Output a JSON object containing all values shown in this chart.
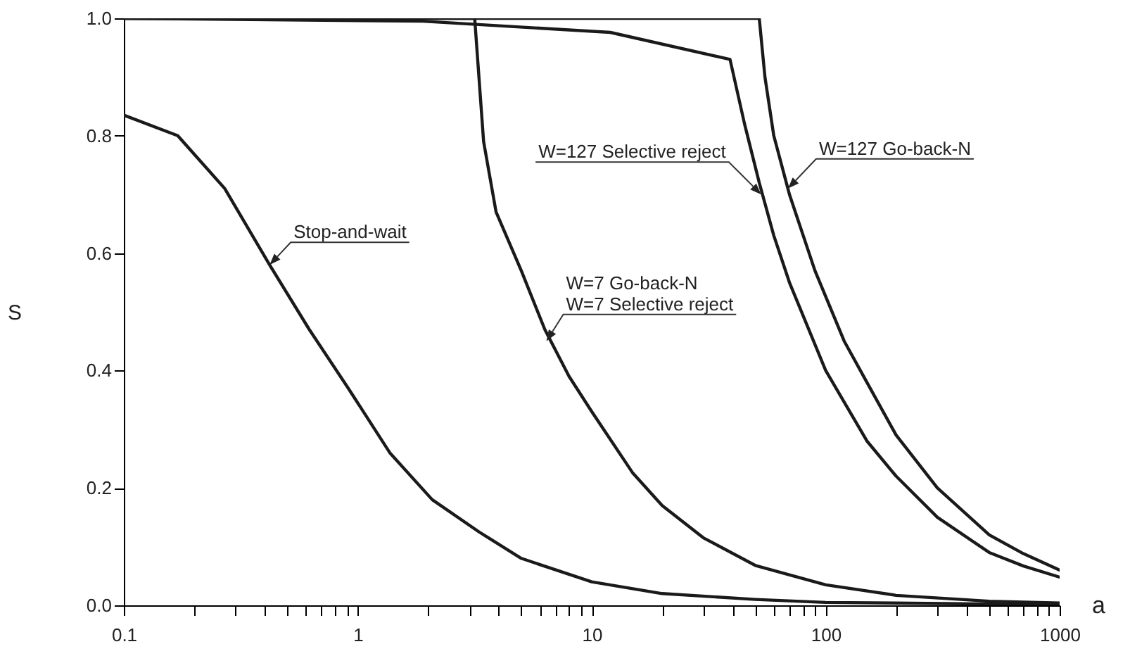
{
  "chart_data": {
    "type": "line",
    "xlabel": "a",
    "ylabel": "S",
    "log": "x",
    "grid": false,
    "marker": "none",
    "line_style": "solid",
    "xlim": [
      0.1,
      1000
    ],
    "ylim": [
      0,
      1
    ],
    "xticks": [
      0.1,
      {
        "value": 0.2,
        "label": null
      },
      {
        "value": 0.3,
        "label": null
      },
      {
        "value": 0.4,
        "label": null
      },
      {
        "value": 0.5,
        "label": null
      },
      {
        "value": 0.6,
        "label": null
      },
      {
        "value": 0.7,
        "label": null
      },
      {
        "value": 0.8,
        "label": null
      },
      {
        "value": 0.9,
        "label": null
      },
      1,
      {
        "value": 2,
        "label": null
      },
      {
        "value": 3,
        "label": null
      },
      {
        "value": 4,
        "label": null
      },
      {
        "value": 5,
        "label": null
      },
      {
        "value": 6,
        "label": null
      },
      {
        "value": 7,
        "label": null
      },
      {
        "value": 8,
        "label": null
      },
      {
        "value": 9,
        "label": null
      },
      10,
      {
        "value": 20,
        "label": null
      },
      {
        "value": 30,
        "label": null
      },
      {
        "value": 40,
        "label": null
      },
      {
        "value": 50,
        "label": null
      },
      {
        "value": 60,
        "label": null
      },
      {
        "value": 70,
        "label": null
      },
      {
        "value": 80,
        "label": null
      },
      {
        "value": 90,
        "label": null
      },
      100,
      {
        "value": 200,
        "label": null
      },
      {
        "value": 300,
        "label": null
      },
      {
        "value": 400,
        "label": null
      },
      {
        "value": 500,
        "label": null
      },
      {
        "value": 600,
        "label": null
      },
      {
        "value": 700,
        "label": null
      },
      {
        "value": 800,
        "label": null
      },
      {
        "value": 900,
        "label": null
      },
      1000
    ],
    "yticks": [
      {
        "value": 0,
        "label": "0.0"
      },
      0.2,
      0.4,
      0.6,
      0.8,
      {
        "value": 1,
        "label": "1.0"
      }
    ],
    "series": [
      {
        "color": "#1a1a1a",
        "x": [
          0.1,
          0.17,
          0.27,
          0.42,
          0.62,
          0.91,
          1.37,
          2.08,
          3.3,
          5,
          10,
          20,
          50,
          100,
          1000
        ],
        "values": [
          0.835,
          0.8,
          0.71,
          0.58,
          0.47,
          0.37,
          0.26,
          0.18,
          0.125,
          0.08,
          0.04,
          0.02,
          0.01,
          0.005,
          0.001
        ]
      },
      {
        "color": "#1a1a1a",
        "x": [
          0.1,
          1,
          3.16,
          3.45,
          3.9,
          5,
          6.3,
          8,
          10,
          15,
          20,
          30,
          50,
          100,
          200,
          500,
          1000
        ],
        "values": [
          1,
          1,
          1,
          0.79,
          0.67,
          0.57,
          0.47,
          0.39,
          0.33,
          0.225,
          0.17,
          0.115,
          0.068,
          0.035,
          0.017,
          0.007,
          0.004
        ]
      },
      {
        "color": "#1a1a1a",
        "x": [
          0.1,
          1.9,
          12,
          39,
          45,
          52,
          60,
          70,
          100,
          150,
          200,
          300,
          500,
          700,
          1000
        ],
        "values": [
          1,
          0.995,
          0.976,
          0.93,
          0.82,
          0.72,
          0.63,
          0.55,
          0.4,
          0.28,
          0.22,
          0.15,
          0.09,
          0.067,
          0.048
        ]
      },
      {
        "color": "#1a1a1a",
        "x": [
          0.1,
          52,
          55,
          60,
          70,
          90,
          120,
          150,
          200,
          300,
          500,
          700,
          1000
        ],
        "values": [
          1,
          1,
          0.9,
          0.8,
          0.7,
          0.57,
          0.45,
          0.38,
          0.29,
          0.2,
          0.12,
          0.088,
          0.06
        ]
      }
    ],
    "annotations": [
      {
        "text": "Stop-and-wait",
        "x": 0.42,
        "y": 0.58
      },
      {
        "text": "W=7 Go-back-N",
        "x": 6.4,
        "y": 0.45
      },
      {
        "text": "W=7 Selective reject",
        "x": 6.4,
        "y": 0.45
      },
      {
        "text": "W=127 Selective reject",
        "x": 53,
        "y": 0.7
      },
      {
        "text": "W=127 Go-back-N",
        "x": 69,
        "y": 0.71
      }
    ]
  }
}
